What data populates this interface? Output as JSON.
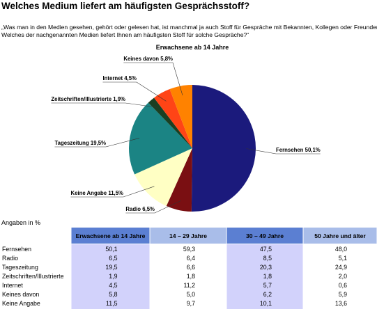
{
  "title": "Welches Medium liefert am häufigsten Gesprächsstoff?",
  "question": [
    "„Was man in den Medien gesehen, gehört oder gelesen hat, ist manchmal ja auch Stoff für Gespräche mit Bekannten, Kollegen oder Freunden.",
    "Welches der nachgenannten Medien liefert Ihnen am häufigsten Stoff für solche Gespräche?“"
  ],
  "chart_data": {
    "type": "pie",
    "title": "Erwachsene ab 14 Jahre",
    "categories": [
      "Fernsehen",
      "Radio",
      "Keine Angabe",
      "Tageszeitung",
      "Zeitschriften/Illustrierte",
      "Internet",
      "Keines davon"
    ],
    "values": [
      50.1,
      6.5,
      11.5,
      19.5,
      1.9,
      4.5,
      5.8
    ],
    "value_labels": [
      "50,1%",
      "6,5%",
      "11,5%",
      "19,5%",
      "1,9%",
      "4,5%",
      "5,8%"
    ],
    "colors": [
      "#1b1a7c",
      "#7a0f12",
      "#ffffc4",
      "#1b8484",
      "#1a3f22",
      "#ff4416",
      "#ff8200"
    ]
  },
  "units_note": "Angaben in %",
  "table": {
    "columns": [
      "Erwachsene ab 14 Jahre",
      "14 – 29 Jahre",
      "30 – 49 Jahre",
      "50 Jahre und älter"
    ],
    "rows": [
      [
        "Fernsehen",
        "50,1",
        "59,3",
        "47,5",
        "48,0"
      ],
      [
        "Radio",
        "6,5",
        "6,4",
        "8,5",
        "5,1"
      ],
      [
        "Tageszeitung",
        "19,5",
        "6,6",
        "20,3",
        "24,9"
      ],
      [
        "Zeitschriften/Illustrierte",
        "1,9",
        "1,8",
        "1,8",
        "2,0"
      ],
      [
        "Internet",
        "4,5",
        "11,2",
        "5,7",
        "0,6"
      ],
      [
        "Keines davon",
        "5,8",
        "5,0",
        "6,2",
        "5,9"
      ],
      [
        "Keine Angabe",
        "11,5",
        "9,7",
        "10,1",
        "13,6"
      ]
    ]
  }
}
